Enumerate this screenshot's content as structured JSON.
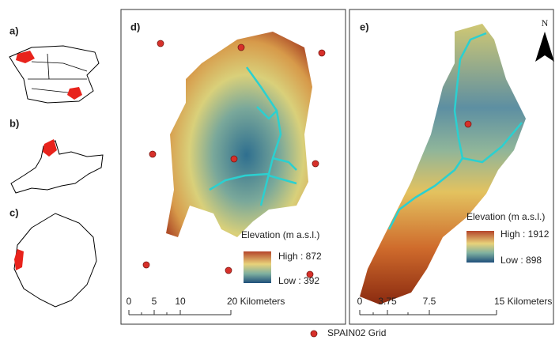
{
  "panels": [
    {
      "label": "a)"
    },
    {
      "label": "b)"
    },
    {
      "label": "c)"
    },
    {
      "label": "d)",
      "legend_title": "Elevation (m a.s.l.)",
      "legend_high": "High : 872",
      "legend_low": "Low : 392",
      "scale_labels": [
        "0",
        "5",
        "10",
        "20 Kilometers"
      ]
    },
    {
      "label": "e)",
      "north": "N",
      "legend_title": "Elevation (m a.s.l.)",
      "legend_high": "High : 1912",
      "legend_low": "Low : 898",
      "scale_labels": [
        "0",
        "3.75",
        "7.5",
        "15 Kilometers"
      ]
    }
  ],
  "legend": {
    "label": "SPAIN02 Grid"
  }
}
